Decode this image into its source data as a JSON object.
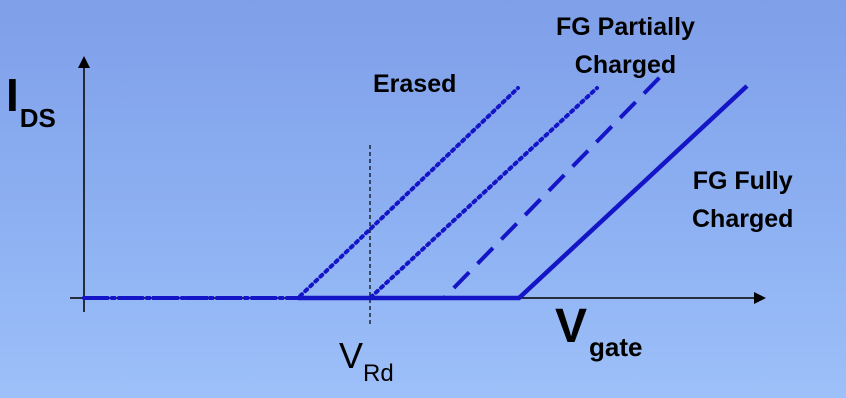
{
  "diagram": {
    "y_axis": {
      "main": "I",
      "sub": "DS"
    },
    "x_axis": {
      "main": "V",
      "sub": "gate"
    },
    "marker": {
      "main": "V",
      "sub": "Rd"
    },
    "curves": {
      "erased": "Erased",
      "partial_line1": "FG Partially",
      "partial_line2": "Charged",
      "fully_line1": "FG Fully",
      "fully_line2": "Charged"
    },
    "colors": {
      "background_top": "#7f9fe9",
      "background_bottom": "#9dc0f9",
      "curve": "#1515c8",
      "axis": "#000000"
    }
  }
}
